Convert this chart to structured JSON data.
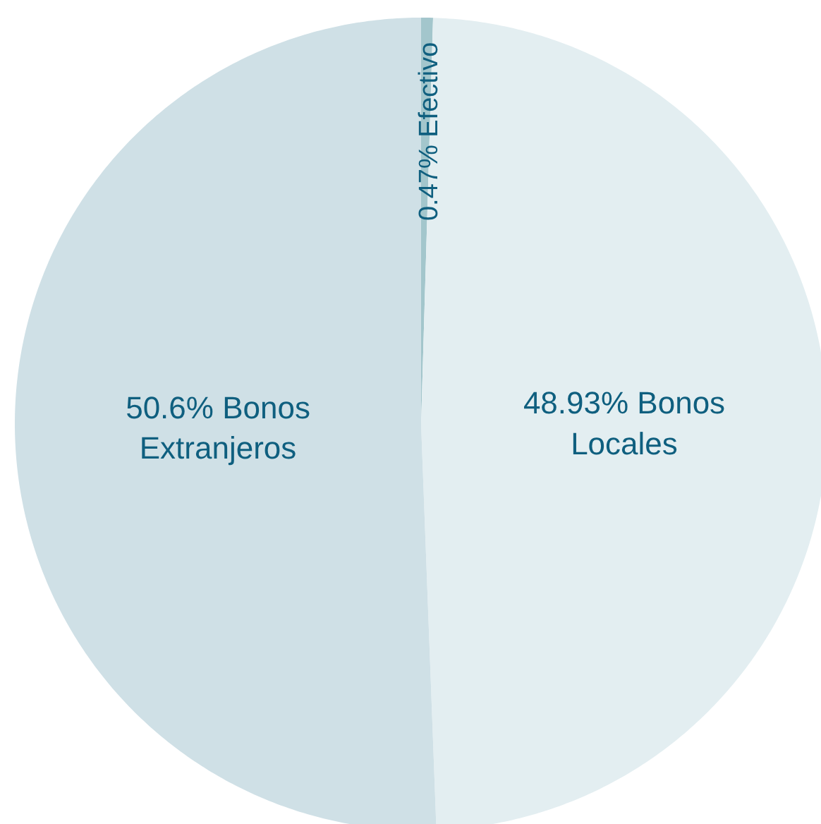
{
  "chart_data": {
    "type": "pie",
    "categories": [
      "Efectivo",
      "Bonos Locales",
      "Bonos Extranjeros"
    ],
    "values": [
      0.47,
      48.93,
      50.6
    ],
    "value_labels": [
      "0.47%",
      "48.93%",
      "50.6%"
    ],
    "colors": [
      "#a3c6cc",
      "#e3eef1",
      "#cfe0e6"
    ]
  }
}
